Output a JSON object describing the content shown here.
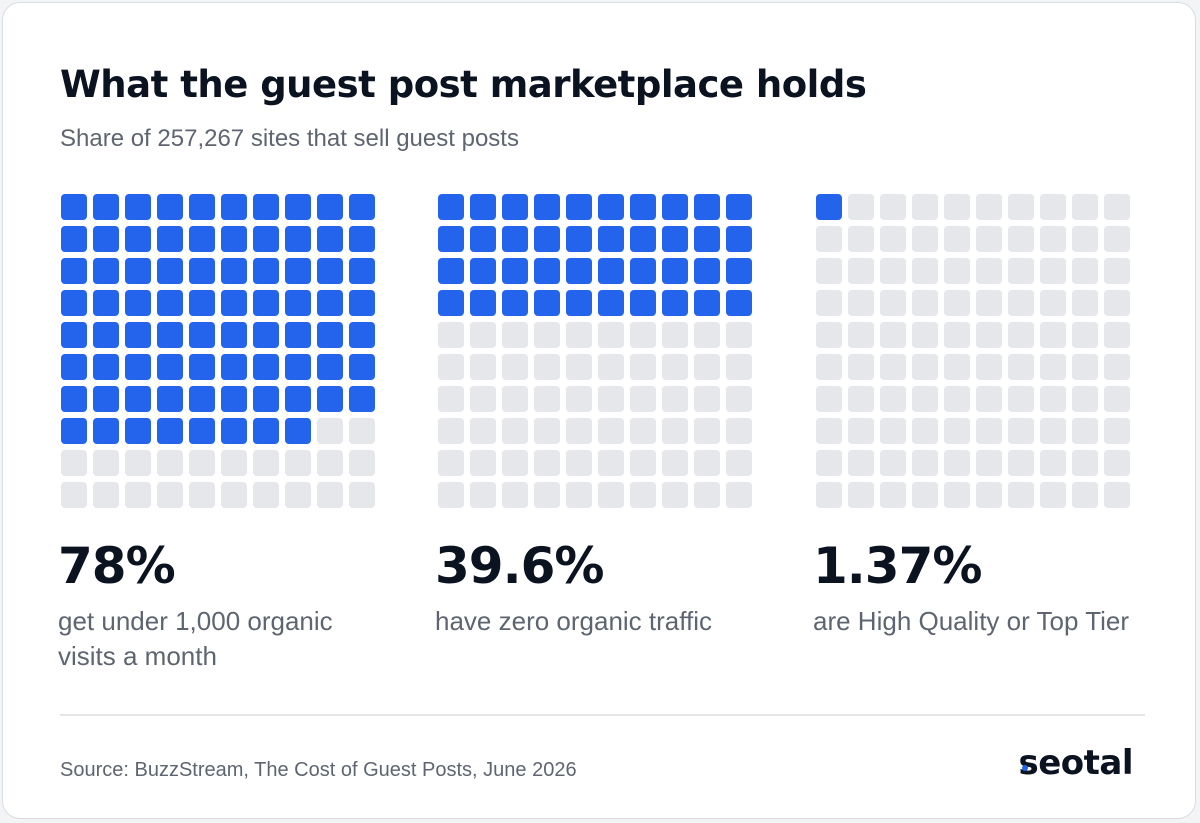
{
  "title": "What the guest post marketplace holds",
  "subtitle": "Share of 257,267 sites that sell guest posts",
  "colors": {
    "filled": "#2463eb",
    "empty": "#e6e7ea",
    "text": "#0b1220",
    "muted": "#5f6570"
  },
  "chart_data": [
    {
      "type": "waffle",
      "grid": [
        10,
        10
      ],
      "value": 78,
      "filled_cells": 78,
      "stat": "78%",
      "label": "get under 1,000 organic visits a month"
    },
    {
      "type": "waffle",
      "grid": [
        10,
        10
      ],
      "value": 39.6,
      "filled_cells": 40,
      "stat": "39.6%",
      "label": "have zero organic traffic"
    },
    {
      "type": "waffle",
      "grid": [
        10,
        10
      ],
      "value": 1.37,
      "filled_cells": 1,
      "stat": "1.37%",
      "label": "are High Quality or Top Tier"
    }
  ],
  "source": "Source: BuzzStream, The Cost of Guest Posts, June 2026",
  "logo": {
    "text": "seotal",
    "icon": "seotal-logo"
  }
}
